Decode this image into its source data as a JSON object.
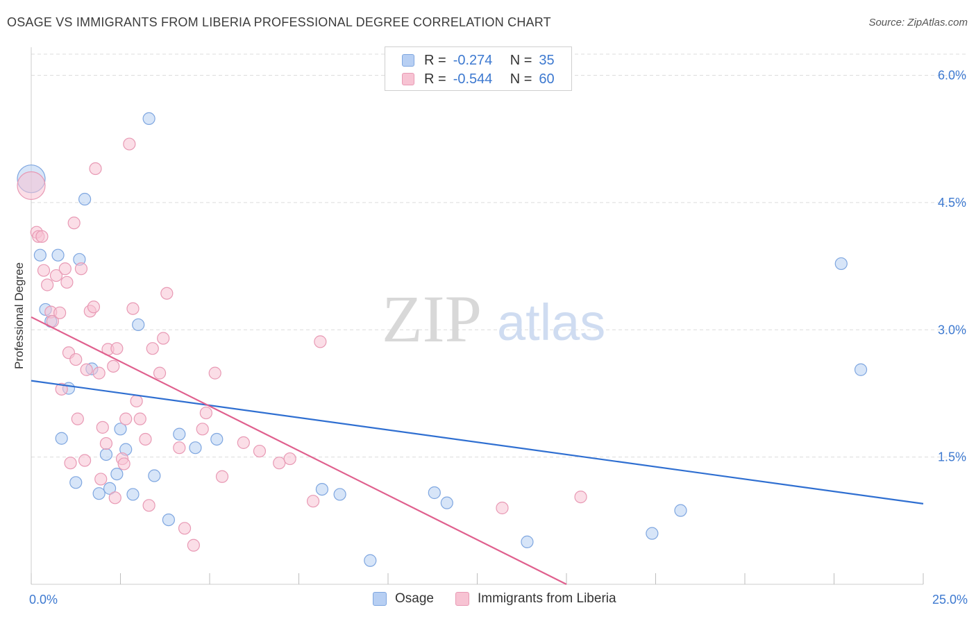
{
  "title": "OSAGE VS IMMIGRANTS FROM LIBERIA PROFESSIONAL DEGREE CORRELATION CHART",
  "source": "Source: ZipAtlas.com",
  "watermark": {
    "zip": "ZIP",
    "atlas": "atlas"
  },
  "legend": {
    "rows": [
      {
        "r_label": "R =",
        "r_value": "-0.274",
        "n_label": "N =",
        "n_value": "35"
      },
      {
        "r_label": "R =",
        "r_value": "-0.544",
        "n_label": "N =",
        "n_value": "60"
      }
    ]
  },
  "bottom_legend": [
    "Osage",
    "Immigrants from Liberia"
  ],
  "colors": {
    "blue_fill": "#b7cff3",
    "blue_stroke": "#7ea6e0",
    "blue_line": "#2f6fd1",
    "pink_fill": "#f7c3d3",
    "pink_stroke": "#e899b4",
    "pink_line": "#e0608e",
    "tick_text": "#3d79d0",
    "grid": "#dcdcdc"
  },
  "chart_data": {
    "type": "scatter",
    "title": "OSAGE VS IMMIGRANTS FROM LIBERIA PROFESSIONAL DEGREE CORRELATION CHART",
    "xlabel": "",
    "ylabel": "Professional Degree",
    "xlim": [
      0,
      25
    ],
    "ylim": [
      0,
      6.25
    ],
    "x_tick_labels": [
      "0.0%",
      "25.0%"
    ],
    "y_ticks": [
      1.5,
      3.0,
      4.5,
      6.0
    ],
    "y_tick_labels": [
      "1.5%",
      "3.0%",
      "4.5%",
      "6.0%"
    ],
    "grid": true,
    "series": [
      {
        "name": "Osage",
        "color": "#7ea6e0",
        "points": [
          {
            "x": 0.0,
            "y": 4.78,
            "big": true
          },
          {
            "x": 0.25,
            "y": 3.88
          },
          {
            "x": 0.4,
            "y": 3.24
          },
          {
            "x": 0.55,
            "y": 3.1
          },
          {
            "x": 0.75,
            "y": 3.88
          },
          {
            "x": 0.85,
            "y": 1.72
          },
          {
            "x": 1.05,
            "y": 2.31
          },
          {
            "x": 1.25,
            "y": 1.2
          },
          {
            "x": 1.35,
            "y": 3.83
          },
          {
            "x": 1.5,
            "y": 4.54
          },
          {
            "x": 1.7,
            "y": 2.54
          },
          {
            "x": 1.9,
            "y": 1.07
          },
          {
            "x": 2.1,
            "y": 1.53
          },
          {
            "x": 2.2,
            "y": 1.13
          },
          {
            "x": 2.4,
            "y": 1.3
          },
          {
            "x": 2.5,
            "y": 1.83
          },
          {
            "x": 2.65,
            "y": 1.59
          },
          {
            "x": 2.85,
            "y": 1.06
          },
          {
            "x": 3.0,
            "y": 3.06
          },
          {
            "x": 3.3,
            "y": 5.49
          },
          {
            "x": 3.45,
            "y": 1.28
          },
          {
            "x": 3.85,
            "y": 0.76
          },
          {
            "x": 4.15,
            "y": 1.77
          },
          {
            "x": 4.6,
            "y": 1.61
          },
          {
            "x": 5.2,
            "y": 1.71
          },
          {
            "x": 8.15,
            "y": 1.12
          },
          {
            "x": 8.65,
            "y": 1.06
          },
          {
            "x": 9.5,
            "y": 0.28
          },
          {
            "x": 11.3,
            "y": 1.08
          },
          {
            "x": 11.65,
            "y": 0.96
          },
          {
            "x": 13.9,
            "y": 0.5
          },
          {
            "x": 17.4,
            "y": 0.6
          },
          {
            "x": 18.2,
            "y": 0.87
          },
          {
            "x": 22.7,
            "y": 3.78
          },
          {
            "x": 23.25,
            "y": 2.53
          }
        ]
      },
      {
        "name": "Immigrants from Liberia",
        "color": "#e899b4",
        "points": [
          {
            "x": 0.0,
            "y": 4.7,
            "big": true
          },
          {
            "x": 0.15,
            "y": 4.15
          },
          {
            "x": 0.2,
            "y": 4.1
          },
          {
            "x": 0.3,
            "y": 4.1
          },
          {
            "x": 0.35,
            "y": 3.7
          },
          {
            "x": 0.45,
            "y": 3.53
          },
          {
            "x": 0.55,
            "y": 3.21
          },
          {
            "x": 0.6,
            "y": 3.1
          },
          {
            "x": 0.7,
            "y": 3.64
          },
          {
            "x": 0.8,
            "y": 3.2
          },
          {
            "x": 0.85,
            "y": 2.3
          },
          {
            "x": 0.95,
            "y": 3.72
          },
          {
            "x": 1.0,
            "y": 3.56
          },
          {
            "x": 1.05,
            "y": 2.73
          },
          {
            "x": 1.1,
            "y": 1.43
          },
          {
            "x": 1.2,
            "y": 4.26
          },
          {
            "x": 1.25,
            "y": 2.65
          },
          {
            "x": 1.3,
            "y": 1.95
          },
          {
            "x": 1.4,
            "y": 3.72
          },
          {
            "x": 1.5,
            "y": 1.46
          },
          {
            "x": 1.55,
            "y": 2.53
          },
          {
            "x": 1.65,
            "y": 3.22
          },
          {
            "x": 1.75,
            "y": 3.27
          },
          {
            "x": 1.8,
            "y": 4.9
          },
          {
            "x": 1.9,
            "y": 2.49
          },
          {
            "x": 1.95,
            "y": 1.24
          },
          {
            "x": 2.0,
            "y": 1.85
          },
          {
            "x": 2.1,
            "y": 1.66
          },
          {
            "x": 2.15,
            "y": 2.77
          },
          {
            "x": 2.3,
            "y": 2.57
          },
          {
            "x": 2.35,
            "y": 1.02
          },
          {
            "x": 2.4,
            "y": 2.78
          },
          {
            "x": 2.55,
            "y": 1.48
          },
          {
            "x": 2.6,
            "y": 1.42
          },
          {
            "x": 2.65,
            "y": 1.95
          },
          {
            "x": 2.75,
            "y": 5.19
          },
          {
            "x": 2.85,
            "y": 3.25
          },
          {
            "x": 2.95,
            "y": 2.16
          },
          {
            "x": 3.05,
            "y": 1.95
          },
          {
            "x": 3.2,
            "y": 1.71
          },
          {
            "x": 3.3,
            "y": 0.93
          },
          {
            "x": 3.4,
            "y": 2.78
          },
          {
            "x": 3.6,
            "y": 2.49
          },
          {
            "x": 3.7,
            "y": 2.9
          },
          {
            "x": 3.8,
            "y": 3.43
          },
          {
            "x": 4.15,
            "y": 1.61
          },
          {
            "x": 4.3,
            "y": 0.66
          },
          {
            "x": 4.55,
            "y": 0.46
          },
          {
            "x": 4.8,
            "y": 1.83
          },
          {
            "x": 4.9,
            "y": 2.02
          },
          {
            "x": 5.15,
            "y": 2.49
          },
          {
            "x": 5.35,
            "y": 1.27
          },
          {
            "x": 5.95,
            "y": 1.67
          },
          {
            "x": 6.4,
            "y": 1.57
          },
          {
            "x": 6.95,
            "y": 1.43
          },
          {
            "x": 7.25,
            "y": 1.48
          },
          {
            "x": 7.9,
            "y": 0.98
          },
          {
            "x": 8.1,
            "y": 2.86
          },
          {
            "x": 13.2,
            "y": 0.9
          },
          {
            "x": 15.4,
            "y": 1.03
          }
        ]
      }
    ],
    "trendlines": [
      {
        "series": "Osage",
        "x": [
          0,
          25
        ],
        "y": [
          2.4,
          0.95
        ]
      },
      {
        "series": "Immigrants from Liberia",
        "x": [
          0,
          15
        ],
        "y": [
          3.15,
          0.0
        ]
      }
    ]
  }
}
